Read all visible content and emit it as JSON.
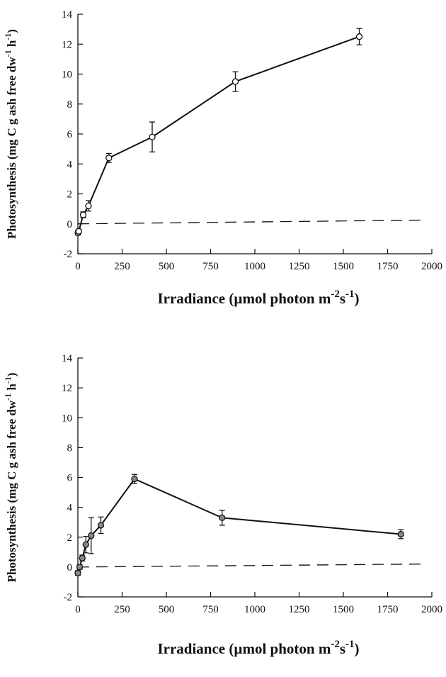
{
  "chart_data": [
    {
      "type": "line",
      "xlabel": {
        "main": "Irradiance (µmol photon m",
        "sup1": "-2",
        "mid": "s",
        "sup2": "-1",
        "end": ")"
      },
      "ylabel": {
        "main": "Photosynthesis (mg C g ash free dw",
        "sup1": "-1",
        "mid": " h",
        "sup2": "-1",
        "end": ")"
      },
      "xlim": [
        0,
        2000
      ],
      "ylim": [
        -2,
        14
      ],
      "xticks": [
        0,
        250,
        500,
        750,
        1000,
        1250,
        1500,
        1750,
        2000
      ],
      "yticks": [
        -2,
        0,
        2,
        4,
        6,
        8,
        10,
        12,
        14
      ],
      "marker": "open-circle",
      "marker_color": "#ffffff",
      "line_color": "#111111",
      "reference_line": {
        "style": "dashed",
        "x": [
          0,
          1950
        ],
        "y": [
          0.0,
          0.25
        ]
      },
      "series": [
        {
          "x": [
            0,
            5,
            30,
            60,
            175,
            420,
            890,
            1590
          ],
          "y": [
            -0.6,
            -0.5,
            0.6,
            1.2,
            4.4,
            5.8,
            9.5,
            12.5
          ],
          "err": [
            0.15,
            0.15,
            0.2,
            0.35,
            0.3,
            1.0,
            0.65,
            0.55
          ]
        }
      ]
    },
    {
      "type": "line",
      "xlabel": {
        "main": "Irradiance (µmol photon m",
        "sup1": "-2",
        "mid": "s",
        "sup2": "-1",
        "end": ")"
      },
      "ylabel": {
        "main": "Photosynthesis (mg C g ash free dw",
        "sup1": "-1",
        "mid": " h",
        "sup2": "-1",
        "end": ")"
      },
      "xlim": [
        0,
        2000
      ],
      "ylim": [
        -2,
        14
      ],
      "xticks": [
        0,
        250,
        500,
        750,
        1000,
        1250,
        1500,
        1750,
        2000
      ],
      "yticks": [
        -2,
        0,
        2,
        4,
        6,
        8,
        10,
        12,
        14
      ],
      "marker": "filled-circle",
      "marker_color": "#888888",
      "line_color": "#111111",
      "reference_line": {
        "style": "dashed",
        "x": [
          0,
          1950
        ],
        "y": [
          0.0,
          0.2
        ]
      },
      "series": [
        {
          "x": [
            0,
            10,
            25,
            45,
            75,
            130,
            320,
            815,
            1825
          ],
          "y": [
            -0.4,
            0.0,
            0.6,
            1.5,
            2.1,
            2.8,
            5.9,
            3.3,
            2.2
          ],
          "err": [
            0.15,
            0.15,
            0.2,
            0.55,
            1.2,
            0.55,
            0.3,
            0.5,
            0.3
          ]
        }
      ]
    }
  ]
}
